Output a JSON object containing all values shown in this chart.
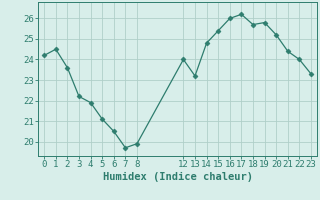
{
  "x": [
    0,
    1,
    2,
    3,
    4,
    5,
    6,
    7,
    8,
    12,
    13,
    14,
    15,
    16,
    17,
    18,
    19,
    20,
    21,
    22,
    23
  ],
  "y": [
    24.2,
    24.5,
    23.6,
    22.2,
    21.9,
    21.1,
    20.5,
    19.7,
    19.9,
    24.0,
    23.2,
    24.8,
    25.4,
    26.0,
    26.2,
    25.7,
    25.8,
    25.2,
    24.4,
    24.0,
    23.3
  ],
  "line_color": "#2e7d6e",
  "marker": "D",
  "marker_size": 2.5,
  "bg_color": "#d8eeea",
  "grid_color": "#b0cfc9",
  "xlabel": "Humidex (Indice chaleur)",
  "xlim": [
    -0.5,
    23.5
  ],
  "ylim": [
    19.3,
    26.8
  ],
  "xticks": [
    0,
    1,
    2,
    3,
    4,
    5,
    6,
    7,
    8,
    12,
    13,
    14,
    15,
    16,
    17,
    18,
    19,
    20,
    21,
    22,
    23
  ],
  "yticks": [
    20,
    21,
    22,
    23,
    24,
    25,
    26
  ],
  "tick_label_color": "#2e7d6e",
  "axis_color": "#2e7d6e",
  "xlabel_fontsize": 7.5,
  "tick_fontsize": 6.5
}
